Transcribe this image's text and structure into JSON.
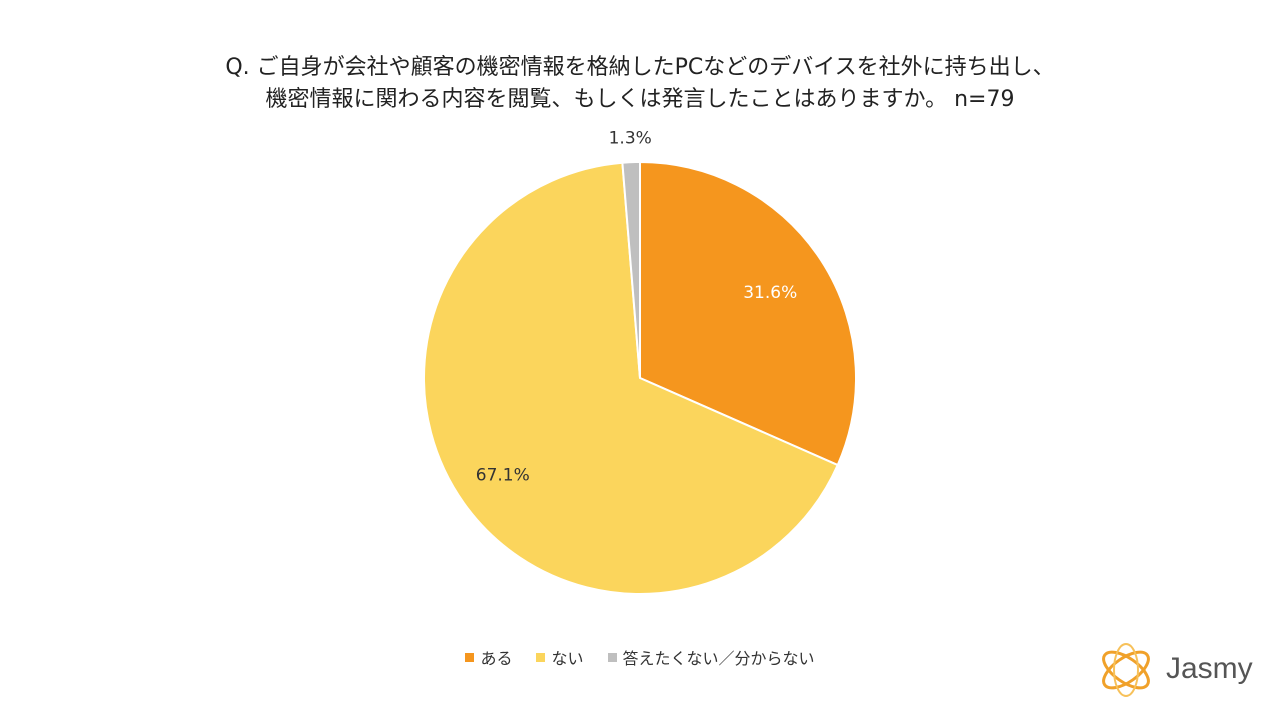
{
  "title": {
    "line1": "Q. ご自身が会社や顧客の機密情報を格納したPCなどのデバイスを社外に持ち出し、",
    "line2": "機密情報に関わる内容を閲覧、もしくは発言したことはありますか。 n=79"
  },
  "chart_data": {
    "type": "pie",
    "title": "Q. ご自身が会社や顧客の機密情報を格納したPCなどのデバイスを社外に持ち出し、機密情報に関わる内容を閲覧、もしくは発言したことはありますか。 n=79",
    "start_angle_deg": 0,
    "direction": "clockwise",
    "slices": [
      {
        "label": "ある",
        "value": 31.6,
        "display": "31.6%",
        "color": "#F5961E"
      },
      {
        "label": "ない",
        "value": 67.1,
        "display": "67.1%",
        "color": "#FBD55C"
      },
      {
        "label": "答えたくない／分からない",
        "value": 1.3,
        "display": "1.3%",
        "color": "#BFBFBF"
      }
    ],
    "legend_position": "bottom"
  },
  "logo": {
    "text": "Jasmy",
    "color": "#F0A12A"
  }
}
